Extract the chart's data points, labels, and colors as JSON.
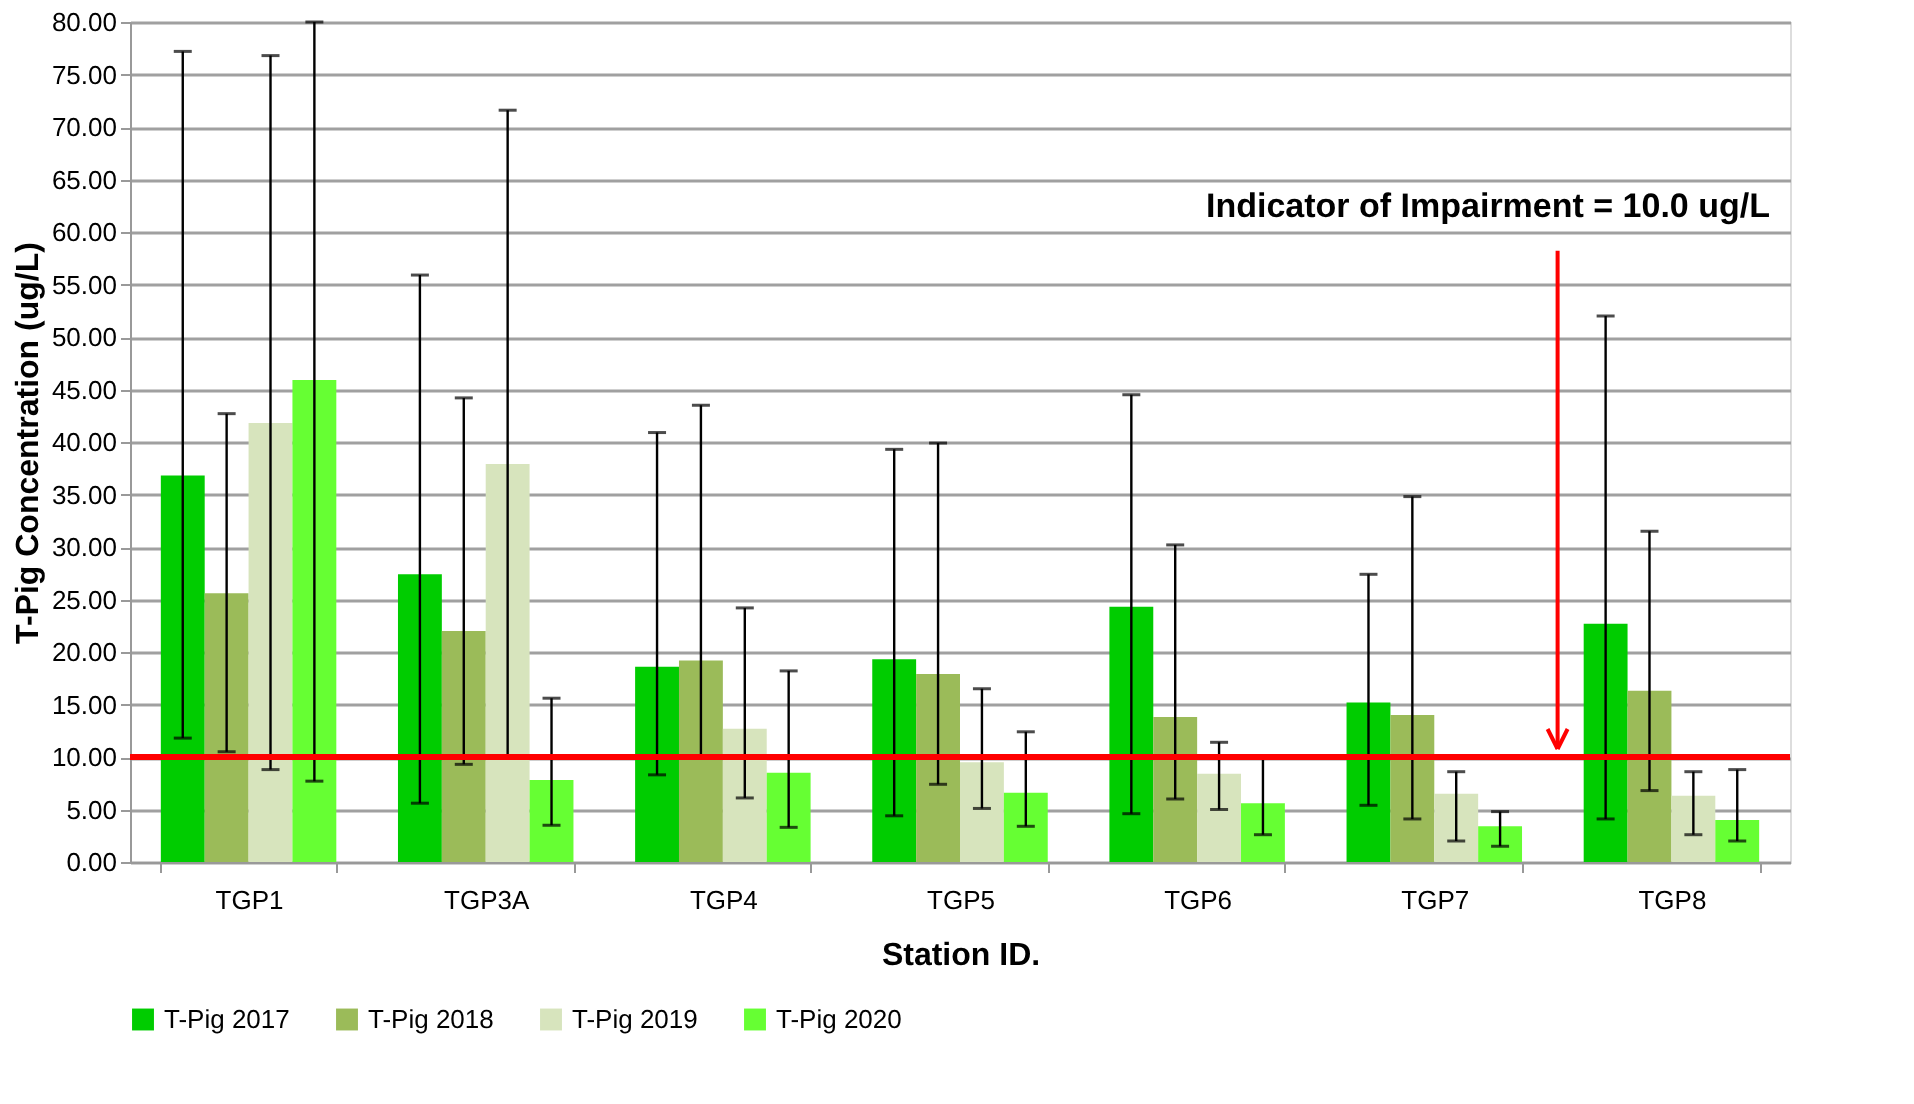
{
  "chart_data": {
    "type": "bar",
    "xlabel": "Station ID.",
    "ylabel": "T-Pig Concentration  (ug/L)",
    "categories": [
      "TGP1",
      "TGP3A",
      "TGP4",
      "TGP5",
      "TGP6",
      "TGP7",
      "TGP8"
    ],
    "series": [
      {
        "name": "T-Pig 2017",
        "color": "#00cc00",
        "values": [
          36.8,
          27.4,
          18.6,
          19.3,
          24.3,
          15.2,
          22.7
        ],
        "errors": [
          [
            11.8,
            77.2
          ],
          [
            5.6,
            55.9
          ],
          [
            8.3,
            40.9
          ],
          [
            4.4,
            39.3
          ],
          [
            4.6,
            44.5
          ],
          [
            5.4,
            27.4
          ],
          [
            4.1,
            52.0
          ]
        ]
      },
      {
        "name": "T-Pig 2018",
        "color": "#9bbb59",
        "values": [
          25.6,
          22.0,
          19.2,
          17.9,
          13.8,
          14.0,
          16.3
        ],
        "errors": [
          [
            10.5,
            42.7
          ],
          [
            9.3,
            44.2
          ],
          [
            9.9,
            43.5
          ],
          [
            7.4,
            39.9
          ],
          [
            6.0,
            30.2
          ],
          [
            4.1,
            34.8
          ],
          [
            6.8,
            31.5
          ]
        ]
      },
      {
        "name": "T-Pig 2019",
        "color": "#d7e4bd",
        "values": [
          41.8,
          37.9,
          12.7,
          9.5,
          8.4,
          6.5,
          6.3
        ],
        "errors": [
          [
            8.8,
            76.8
          ],
          [
            9.9,
            71.6
          ],
          [
            6.1,
            24.2
          ],
          [
            5.1,
            16.5
          ],
          [
            5.0,
            11.4
          ],
          [
            2.0,
            8.6
          ],
          [
            2.6,
            8.6
          ]
        ]
      },
      {
        "name": "T-Pig 2020",
        "color": "#66ff33",
        "values": [
          45.9,
          7.8,
          8.5,
          6.6,
          5.6,
          3.4,
          4.0
        ],
        "errors": [
          [
            7.7,
            80.0
          ],
          [
            3.5,
            15.6
          ],
          [
            3.3,
            18.2
          ],
          [
            3.4,
            12.4
          ],
          [
            2.6,
            10.0
          ],
          [
            1.5,
            4.8
          ],
          [
            2.0,
            8.8
          ]
        ]
      }
    ],
    "ylim": [
      0,
      80
    ],
    "yticks": [
      {
        "value": 0,
        "label": "0.00"
      },
      {
        "value": 5,
        "label": "5.00"
      },
      {
        "value": 10,
        "label": "10.00"
      },
      {
        "value": 15,
        "label": "15.00"
      },
      {
        "value": 20,
        "label": "20.00"
      },
      {
        "value": 25,
        "label": "25.00"
      },
      {
        "value": 30,
        "label": "30.00"
      },
      {
        "value": 35,
        "label": "35.00"
      },
      {
        "value": 40,
        "label": "40.00"
      },
      {
        "value": 45,
        "label": "45.00"
      },
      {
        "value": 50,
        "label": "50.00"
      },
      {
        "value": 55,
        "label": "55.00"
      },
      {
        "value": 60,
        "label": "60.00"
      },
      {
        "value": 65,
        "label": "65.00"
      },
      {
        "value": 70,
        "label": "70.00"
      },
      {
        "value": 75,
        "label": "75.00"
      },
      {
        "value": 80,
        "label": "80.00"
      }
    ],
    "ref_lines": [
      {
        "axis": "y",
        "value": 10.0,
        "label": "Indicator of Impairment = 10.0 ug/L",
        "color": "#ff0000",
        "line_style": "solid"
      }
    ],
    "grid": "y",
    "legend": "bottom"
  }
}
